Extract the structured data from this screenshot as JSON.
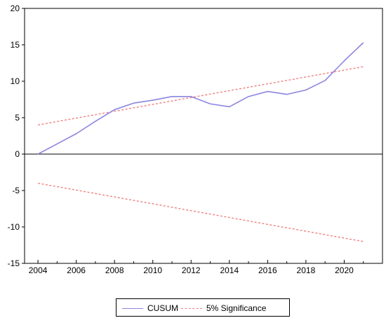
{
  "chart_data": {
    "type": "line",
    "x": [
      2004,
      2005,
      2006,
      2007,
      2008,
      2009,
      2010,
      2011,
      2012,
      2013,
      2014,
      2015,
      2016,
      2017,
      2018,
      2019,
      2020,
      2021
    ],
    "series": [
      {
        "name": "CUSUM",
        "color": "#8c85e0",
        "style": "solid",
        "values": [
          0,
          1.4,
          2.8,
          4.5,
          6.1,
          7.0,
          7.4,
          7.9,
          7.9,
          6.9,
          6.5,
          7.9,
          8.6,
          8.2,
          8.8,
          10.1,
          12.8,
          15.3
        ]
      },
      {
        "name": "5% Significance",
        "color": "#f08080",
        "style": "dashed",
        "upper": [
          4.0,
          12.0
        ],
        "lower": [
          -4.0,
          -12.0
        ],
        "x_range": [
          2004,
          2021
        ]
      }
    ],
    "x_ticks": [
      2004,
      2006,
      2008,
      2010,
      2012,
      2014,
      2016,
      2018,
      2020
    ],
    "y_ticks": [
      20,
      15,
      10,
      5,
      0,
      -5,
      -10,
      -15
    ],
    "xlim": [
      2003.3,
      2022.0
    ],
    "ylim": [
      -15,
      20
    ],
    "zero_line": true,
    "grid": false,
    "legend": "bottom-center"
  }
}
